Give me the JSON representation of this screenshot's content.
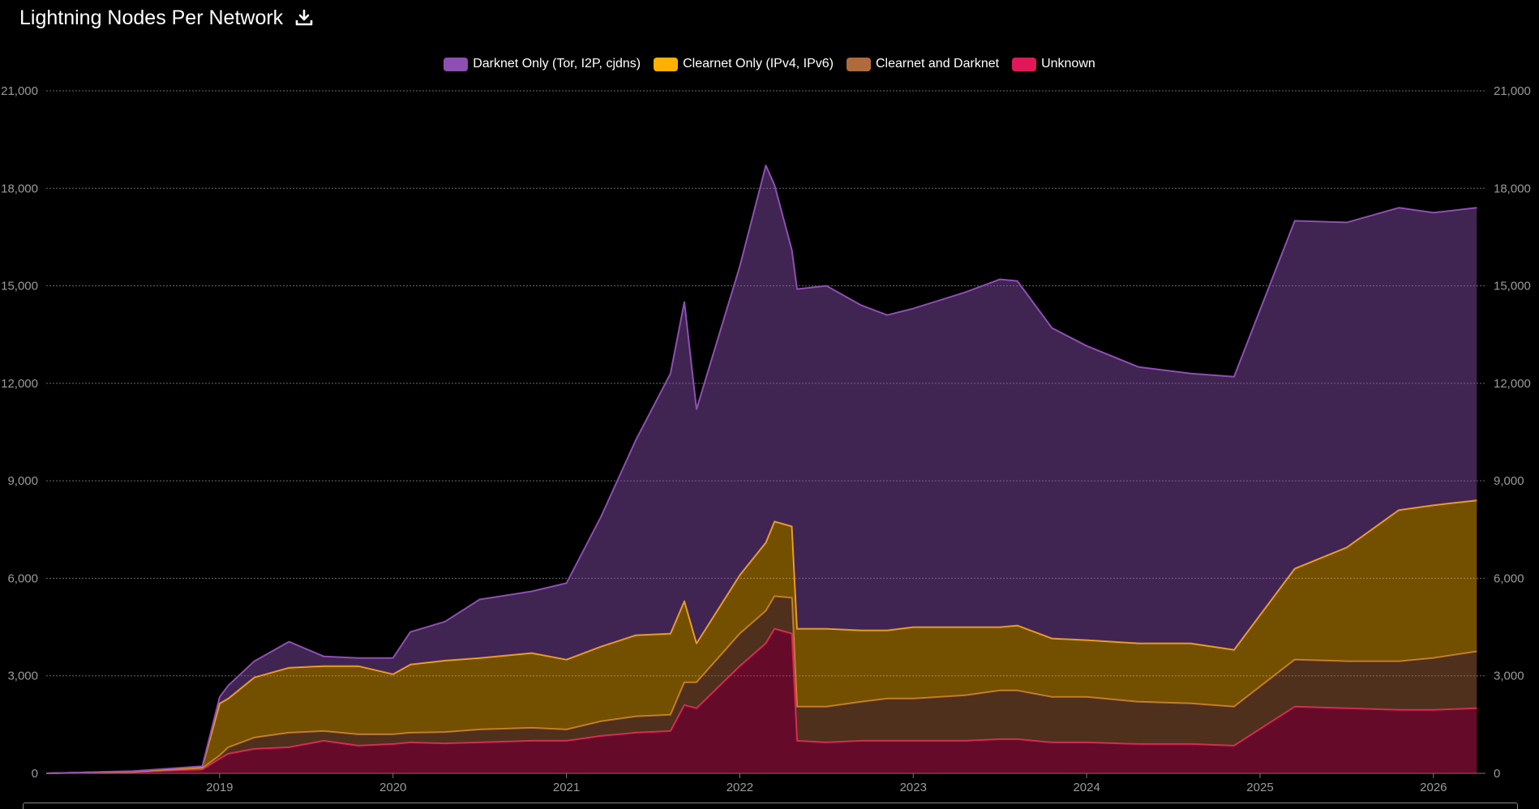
{
  "header": {
    "title": "Lightning Nodes Per Network",
    "download_icon": "download-icon"
  },
  "chart_data": {
    "type": "area",
    "stacked": true,
    "title": "Lightning Nodes Per Network",
    "ylim": [
      0,
      21000
    ],
    "yticks": [
      "0",
      "3,000",
      "6,000",
      "9,000",
      "12,000",
      "15,000",
      "18,000",
      "21,000"
    ],
    "xlim": [
      2018.0,
      2026.3
    ],
    "xticks": [
      "2019",
      "2020",
      "2021",
      "2022",
      "2023",
      "2024",
      "2025",
      "2026"
    ],
    "grid": true,
    "legend_position": "top-center",
    "x": [
      2018.0,
      2018.5,
      2018.9,
      2019.0,
      2019.05,
      2019.2,
      2019.4,
      2019.6,
      2019.8,
      2020.0,
      2020.1,
      2020.3,
      2020.5,
      2020.8,
      2021.0,
      2021.2,
      2021.4,
      2021.6,
      2021.68,
      2021.75,
      2022.0,
      2022.15,
      2022.2,
      2022.3,
      2022.33,
      2022.5,
      2022.7,
      2022.85,
      2023.0,
      2023.3,
      2023.5,
      2023.6,
      2023.8,
      2024.0,
      2024.3,
      2024.6,
      2024.85,
      2025.2,
      2025.5,
      2025.8,
      2026.0,
      2026.25
    ],
    "series": [
      {
        "name": "Unknown",
        "color": "#e0185a",
        "values": [
          0,
          40,
          120,
          450,
          600,
          750,
          800,
          1000,
          850,
          900,
          950,
          920,
          950,
          1000,
          1000,
          1150,
          1250,
          1300,
          2100,
          2000,
          3300,
          4000,
          4450,
          4300,
          1000,
          950,
          1000,
          1000,
          1000,
          1000,
          1050,
          1050,
          950,
          950,
          900,
          900,
          850,
          2050,
          2000,
          1950,
          1950,
          2000
        ]
      },
      {
        "name": "Clearnet and Darknet",
        "color": "#b06b3d",
        "values": [
          0,
          10,
          40,
          100,
          200,
          350,
          450,
          300,
          350,
          300,
          300,
          350,
          400,
          400,
          350,
          450,
          500,
          500,
          700,
          800,
          1000,
          1000,
          1000,
          1100,
          1050,
          1100,
          1200,
          1300,
          1300,
          1400,
          1500,
          1500,
          1400,
          1400,
          1300,
          1250,
          1200,
          1450,
          1450,
          1500,
          1600,
          1750
        ]
      },
      {
        "name": "Clearnet Only (IPv4, IPv6)",
        "color": "#ffb000",
        "values": [
          0,
          10,
          40,
          1600,
          1500,
          1850,
          2000,
          2000,
          2100,
          1850,
          2100,
          2200,
          2200,
          2300,
          2150,
          2300,
          2500,
          2500,
          2500,
          1200,
          1800,
          2100,
          2300,
          2200,
          2400,
          2400,
          2200,
          2100,
          2200,
          2100,
          1950,
          2000,
          1800,
          1750,
          1800,
          1850,
          1750,
          2800,
          3500,
          4650,
          4700,
          4650
        ]
      },
      {
        "name": "Darknet Only (Tor, I2P, cjdns)",
        "color": "#8e4fb3",
        "values": [
          0,
          10,
          20,
          200,
          400,
          500,
          800,
          300,
          250,
          500,
          1000,
          1200,
          1800,
          1900,
          2350,
          4000,
          6000,
          8000,
          9200,
          7200,
          9500,
          11600,
          10350,
          8500,
          10450,
          10550,
          10000,
          9700,
          9800,
          10300,
          10700,
          10600,
          9550,
          9050,
          8500,
          8300,
          8400,
          10700,
          10000,
          9300,
          9000,
          9000
        ]
      }
    ]
  }
}
